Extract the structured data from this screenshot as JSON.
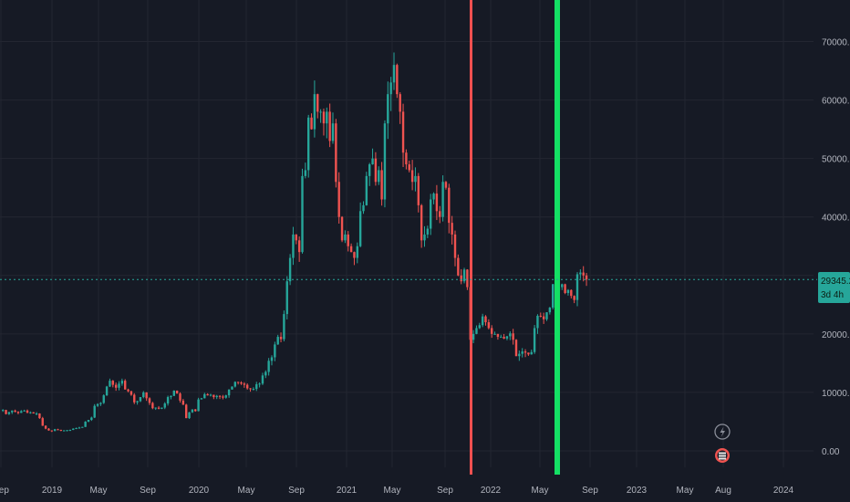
{
  "chart_data": {
    "type": "candlestick",
    "title": "",
    "xlabel": "",
    "ylabel": "",
    "ylim": [
      -3000,
      73500
    ],
    "x_ticks": [
      "Sep",
      "2019",
      "May",
      "Sep",
      "2020",
      "May",
      "Sep",
      "2021",
      "May",
      "Sep",
      "2022",
      "May",
      "Sep",
      "2023",
      "May",
      "Aug",
      "2024"
    ],
    "y_ticks": [
      "70000.00",
      "60000.00",
      "50000.00",
      "40000.00",
      "30000.00",
      "20000.00",
      "10000.00",
      "0.00"
    ],
    "y_tick_values": [
      70000,
      60000,
      50000,
      40000,
      30000,
      20000,
      10000,
      0
    ],
    "last_price": "29345.28",
    "countdown": "3d 4h",
    "colors": {
      "up": "#26a69a",
      "down": "#ef5350",
      "background": "#161a25",
      "grid": "#232631",
      "text": "#b2b5be",
      "marker_red": "#f05050",
      "marker_green": "#14e064",
      "price_tag": "#26a69a"
    },
    "vertical_markers": [
      {
        "color": "red",
        "date": "Nov 2021"
      },
      {
        "color": "green",
        "date": "Jun 2022"
      }
    ],
    "series": [
      {
        "date": "2018-08",
        "values": [
          7000,
          6300,
          6600,
          6900,
          6700,
          6500,
          6800,
          6900,
          6500,
          6600,
          6400,
          6400,
          5600,
          4300,
          3800,
          3500,
          3400,
          3700,
          3600,
          3500,
          3500,
          3550,
          3600,
          3800,
          3900,
          4000,
          4100,
          5000,
          5300,
          5700,
          7700,
          8000,
          8200,
          9500,
          11000,
          12000,
          11300,
          10800,
          11500,
          12000,
          10500,
          10200,
          9600,
          8300,
          8500,
          9200,
          10000,
          9000,
          8200,
          7300,
          7400,
          7200,
          7400,
          8100,
          9200,
          9400,
          10300,
          9800,
          8600,
          7900,
          5600,
          6600,
          7100,
          6800,
          8800,
          9000,
          9700,
          9500,
          9600,
          9200,
          9400,
          9300,
          9100,
          9500,
          10500,
          11000,
          11800,
          11700,
          11500,
          11300,
          10700,
          10600,
          10600,
          11400,
          11500,
          12900,
          13500,
          15400,
          16000,
          18200,
          19500,
          19100,
          23400,
          29000,
          33000,
          37000,
          36000,
          34000,
          47000,
          48000,
          57000,
          55000,
          61000,
          58000,
          58000,
          56000,
          58000,
          53000,
          56000,
          46000,
          40000,
          36000,
          37000,
          35000,
          34000,
          33000,
          35000,
          41000,
          42000,
          47000,
          49000,
          50000,
          46000,
          48000,
          43000,
          56000,
          61000,
          63000,
          66000,
          61000,
          58000,
          51000,
          49000,
          48000,
          46000,
          47000,
          42000,
          36000,
          37000,
          38000,
          43000,
          44000,
          41000,
          40000,
          46000,
          45000,
          39000,
          37000,
          33000,
          30000,
          29000,
          31000,
          28000,
          19000,
          20000,
          21000,
          21500,
          23000,
          22000,
          21000,
          20000,
          20000,
          19500,
          19500,
          19200,
          19600,
          20100,
          19000,
          16200,
          16600,
          17000,
          16800,
          16500,
          16900,
          21000,
          23100,
          23000,
          22500,
          23700,
          24500,
          28500,
          27500,
          28000,
          28500,
          27000,
          27500,
          26500,
          25800,
          30200,
          30500,
          30000,
          29300
        ]
      }
    ]
  }
}
